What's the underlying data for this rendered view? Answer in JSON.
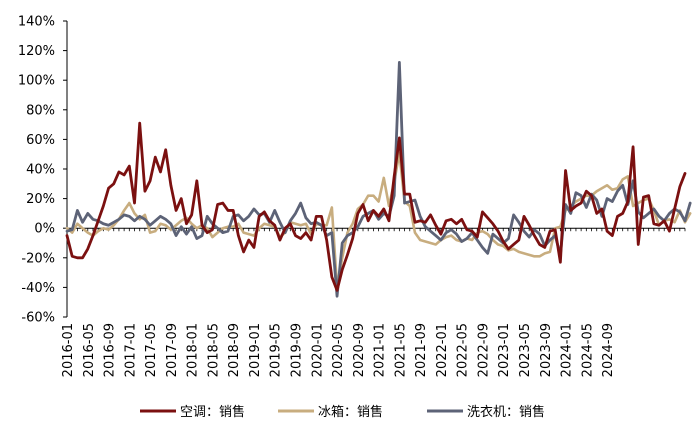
{
  "chart_data": {
    "type": "line",
    "title": "",
    "xlabel": "",
    "ylabel": "",
    "ylim": [
      -60,
      140
    ],
    "y_ticks": [
      "140%",
      "120%",
      "100%",
      "80%",
      "60%",
      "40%",
      "20%",
      "0%",
      "-20%",
      "-40%",
      "-60%"
    ],
    "x_start": "2016-01",
    "x_tick_labels": [
      "2016-01",
      "2016-05",
      "2016-09",
      "2017-01",
      "2017-05",
      "2017-09",
      "2018-01",
      "2018-05",
      "2018-09",
      "2019-01",
      "2019-05",
      "2019-09",
      "2020-01",
      "2020-05",
      "2020-09",
      "2021-01",
      "2021-05",
      "2021-09",
      "2022-01",
      "2022-05",
      "2022-09",
      "2023-01",
      "2023-05",
      "2023-09",
      "2024-01",
      "2024-05",
      "2024-09"
    ],
    "legend_position": "bottom",
    "grid": false,
    "series": [
      {
        "name": "空调：销售",
        "color": "#7B1010",
        "values": [
          -5,
          -19,
          -20,
          -20,
          -14,
          -5,
          5,
          15,
          27,
          30,
          38,
          36,
          42,
          17,
          71,
          25,
          32,
          48,
          38,
          53,
          29,
          12,
          20,
          3,
          9,
          32,
          2,
          -3,
          -1,
          16,
          17,
          12,
          12,
          -5,
          -16,
          -8,
          -13,
          8,
          11,
          5,
          2,
          -8,
          0,
          3,
          -5,
          -7,
          -3,
          -8,
          8,
          8,
          -8,
          -33,
          -42,
          -28,
          -18,
          -7,
          10,
          16,
          5,
          12,
          8,
          13,
          5,
          35,
          61,
          23,
          23,
          4,
          5,
          4,
          9,
          2,
          -4,
          5,
          6,
          3,
          6,
          -1,
          -2,
          -6,
          11,
          7,
          3,
          -2,
          -9,
          -14,
          -11,
          -8,
          8,
          2,
          -5,
          -11,
          -13,
          -2,
          -1,
          -23,
          39,
          12,
          15,
          17,
          25,
          22,
          10,
          13,
          -2,
          -5,
          8,
          10,
          18,
          55,
          -11,
          21,
          22,
          3,
          2,
          5,
          -2,
          13,
          28,
          37
        ]
      },
      {
        "name": "冰箱：销售",
        "color": "#C8AD7F",
        "values": [
          0,
          -3,
          3,
          0,
          -3,
          -5,
          -2,
          0,
          -1,
          2,
          6,
          12,
          17,
          10,
          6,
          9,
          -3,
          -2,
          3,
          2,
          -1,
          2,
          5,
          7,
          3,
          0,
          2,
          0,
          -6,
          -3,
          0,
          1,
          1,
          3,
          -3,
          -4,
          -5,
          0,
          3,
          2,
          1,
          -6,
          -3,
          4,
          3,
          2,
          3,
          -4,
          3,
          2,
          2,
          14,
          -40,
          -20,
          -3,
          3,
          13,
          16,
          22,
          22,
          18,
          34,
          15,
          31,
          51,
          18,
          15,
          -3,
          -8,
          -9,
          -10,
          -11,
          -8,
          -6,
          -5,
          -8,
          -9,
          -7,
          -8,
          -3,
          -2,
          -4,
          -8,
          -11,
          -12,
          -15,
          -14,
          -16,
          -17,
          -18,
          -19,
          -19,
          -17,
          -16,
          0,
          1,
          12,
          15,
          18,
          20,
          22,
          22,
          25,
          27,
          29,
          26,
          27,
          33,
          35,
          15,
          17,
          19,
          20,
          12,
          2,
          5,
          6,
          4,
          12,
          4,
          10
        ]
      },
      {
        "name": "洗衣机：销售",
        "color": "#5D6377",
        "values": [
          -2,
          -1,
          12,
          4,
          10,
          6,
          5,
          3,
          2,
          4,
          6,
          9,
          8,
          5,
          8,
          6,
          2,
          5,
          8,
          6,
          3,
          -5,
          1,
          -4,
          1,
          -7,
          -5,
          8,
          3,
          0,
          -3,
          -2,
          8,
          9,
          5,
          8,
          13,
          9,
          10,
          4,
          12,
          4,
          -3,
          5,
          10,
          17,
          7,
          3,
          4,
          2,
          -5,
          -3,
          -46,
          -10,
          -5,
          -3,
          1,
          8,
          10,
          12,
          6,
          10,
          8,
          22,
          112,
          17,
          18,
          19,
          8,
          1,
          -2,
          -5,
          -8,
          -3,
          -1,
          -4,
          -9,
          -7,
          -3,
          -8,
          -13,
          -17,
          -4,
          -7,
          -10,
          -7,
          9,
          4,
          -2,
          -6,
          -1,
          -4,
          -12,
          -8,
          -5,
          -18,
          16,
          10,
          24,
          22,
          14,
          23,
          19,
          8,
          20,
          18,
          25,
          29,
          16,
          32,
          11,
          7,
          10,
          13,
          8,
          5,
          10,
          13,
          11,
          5,
          17
        ]
      }
    ]
  }
}
